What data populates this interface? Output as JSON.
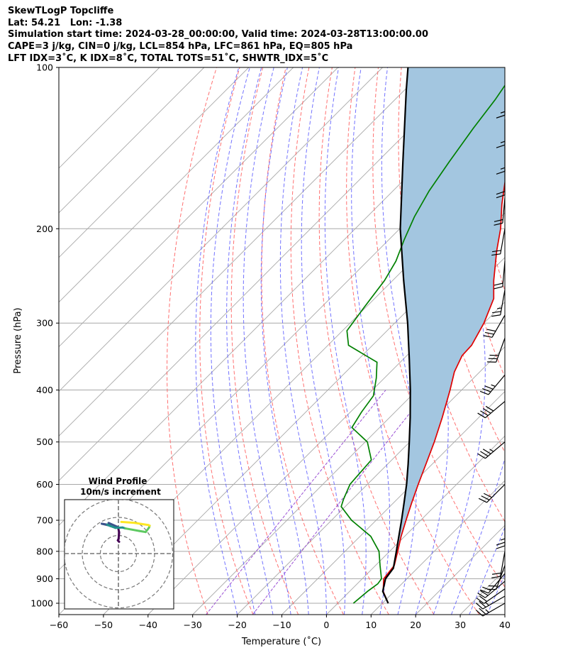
{
  "title": {
    "line1": "SkewTLogP Topcliffe",
    "line2": "Lat: 54.21   Lon: -1.38",
    "line3": "Simulation start time: 2024-03-28_00:00:00, Valid time: 2024-03-28T13:00:00.00",
    "line4": "CAPE=3 j/kg, CIN=0 j/kg, LCL=854 hPa, LFC=861 hPa, EQ=805 hPa",
    "line5": "LFT IDX=3˚C, K IDX=8˚C, TOTAL TOTS=51˚C, SHWTR_IDX=5˚C"
  },
  "colors": {
    "temperature": "#e00000",
    "dewpoint": "#008000",
    "parcel": "#000000",
    "cape_fill": "#a3c6e0",
    "dry_adiabat": "#ff6060",
    "moist_adiabat": "#5a5aff",
    "mixing_ratio": "#9a4fd4",
    "isotherm": "#a8a8a8"
  },
  "chart_data": {
    "type": "line",
    "xlabel": "Temperature (˚C)",
    "ylabel": "Pressure (hPa)",
    "xlim": [
      -60,
      40
    ],
    "ylim": [
      1050,
      100
    ],
    "y_scale": "log",
    "grid": true,
    "x_ticks": [
      "−60",
      "−50",
      "−40",
      "−30",
      "−20",
      "−10",
      "0",
      "10",
      "20",
      "30",
      "40"
    ],
    "y_ticks": [
      "100",
      "200",
      "300",
      "400",
      "500",
      "600",
      "700",
      "800",
      "900",
      "1000"
    ],
    "series": [
      {
        "color": "#e00000",
        "points": [
          [
            1000,
            11.3
          ],
          [
            950,
            7.5
          ],
          [
            900,
            4.8
          ],
          [
            850,
            4.2
          ],
          [
            800,
            1.8
          ],
          [
            750,
            -0.8
          ],
          [
            700,
            -3.3
          ],
          [
            650,
            -5.9
          ],
          [
            600,
            -8.6
          ],
          [
            550,
            -11.4
          ],
          [
            500,
            -14.5
          ],
          [
            450,
            -18.2
          ],
          [
            400,
            -22.6
          ],
          [
            370,
            -25.7
          ],
          [
            345,
            -27.6
          ],
          [
            330,
            -27.8
          ],
          [
            300,
            -30.0
          ],
          [
            270,
            -33.3
          ],
          [
            250,
            -37.3
          ],
          [
            220,
            -43.3
          ],
          [
            200,
            -47.4
          ],
          [
            180,
            -52.6
          ],
          [
            165,
            -56.5
          ],
          [
            150,
            -60.6
          ],
          [
            130,
            -66.6
          ],
          [
            115,
            -71.8
          ],
          [
            100,
            -77.0
          ]
        ]
      },
      {
        "color": "#008000",
        "points": [
          [
            1000,
            3.5
          ],
          [
            950,
            4.0
          ],
          [
            920,
            4.6
          ],
          [
            900,
            4.3
          ],
          [
            850,
            1.0
          ],
          [
            800,
            -2.4
          ],
          [
            750,
            -7.6
          ],
          [
            700,
            -15.5
          ],
          [
            660,
            -20.9
          ],
          [
            640,
            -22.0
          ],
          [
            600,
            -23.9
          ],
          [
            540,
            -24.6
          ],
          [
            500,
            -29.5
          ],
          [
            470,
            -36.2
          ],
          [
            440,
            -37.5
          ],
          [
            410,
            -38.5
          ],
          [
            380,
            -41.8
          ],
          [
            355,
            -45.2
          ],
          [
            330,
            -55.4
          ],
          [
            310,
            -59.0
          ],
          [
            280,
            -60.4
          ],
          [
            250,
            -61.8
          ],
          [
            230,
            -63.6
          ],
          [
            210,
            -66.5
          ],
          [
            190,
            -69.4
          ],
          [
            170,
            -71.9
          ],
          [
            150,
            -73.9
          ],
          [
            130,
            -76.0
          ],
          [
            115,
            -77.5
          ],
          [
            100,
            -79.8
          ]
        ]
      },
      {
        "color": "#000000",
        "points": [
          [
            1000,
            11.3
          ],
          [
            950,
            7.4
          ],
          [
            900,
            5.2
          ],
          [
            860,
            4.6
          ],
          [
            800,
            1.5
          ],
          [
            750,
            -1.3
          ],
          [
            700,
            -4.3
          ],
          [
            650,
            -7.6
          ],
          [
            600,
            -11.2
          ],
          [
            550,
            -15.4
          ],
          [
            500,
            -20.1
          ],
          [
            450,
            -25.4
          ],
          [
            400,
            -31.5
          ],
          [
            350,
            -38.7
          ],
          [
            300,
            -47.1
          ],
          [
            250,
            -57.5
          ],
          [
            200,
            -69.9
          ],
          [
            150,
            -84.3
          ],
          [
            110,
            -99.7
          ],
          [
            100,
            -104.3
          ]
        ]
      }
    ]
  },
  "hodograph": {
    "title_line1": "Wind Profile",
    "title_line2": "10m/s increment",
    "ring_increment_ms": 10,
    "rings": 3,
    "trace": [
      {
        "u": 0.4,
        "v": 6.5
      },
      {
        "u": -0.3,
        "v": 7.3
      },
      {
        "u": 0.1,
        "v": 8.1
      },
      {
        "u": 0.4,
        "v": 11.7
      },
      {
        "u": -0.2,
        "v": 14.6
      },
      {
        "u": -5.4,
        "v": 16.9
      },
      {
        "u": -4.7,
        "v": 15.4
      },
      {
        "u": -9.2,
        "v": 16.5
      },
      {
        "u": -6.2,
        "v": 16.0
      },
      {
        "u": -4.4,
        "v": 15.2
      },
      {
        "u": -1.6,
        "v": 14.2
      },
      {
        "u": 2.3,
        "v": 14.4
      },
      {
        "u": 3.9,
        "v": 13.9
      },
      {
        "u": 11.5,
        "v": 12.5
      },
      {
        "u": 15.1,
        "v": 11.9
      },
      {
        "u": 16.9,
        "v": 14.3
      },
      {
        "u": 17.3,
        "v": 15.4
      },
      {
        "u": 16.5,
        "v": 15.8
      },
      {
        "u": 8.6,
        "v": 17.0
      },
      {
        "u": 1.6,
        "v": 17.5
      }
    ]
  },
  "wind_barbs": [
    {
      "pressure": 1000,
      "speed_kt": 25,
      "dir_deg": 240
    },
    {
      "pressure": 970,
      "speed_kt": 25,
      "dir_deg": 240
    },
    {
      "pressure": 940,
      "speed_kt": 20,
      "dir_deg": 235
    },
    {
      "pressure": 910,
      "speed_kt": 20,
      "dir_deg": 230
    },
    {
      "pressure": 880,
      "speed_kt": 20,
      "dir_deg": 220
    },
    {
      "pressure": 850,
      "speed_kt": 20,
      "dir_deg": 200
    },
    {
      "pressure": 800,
      "speed_kt": 20,
      "dir_deg": 190
    },
    {
      "pressure": 700,
      "speed_kt": 25,
      "dir_deg": 180
    },
    {
      "pressure": 600,
      "speed_kt": 30,
      "dir_deg": 225
    },
    {
      "pressure": 500,
      "speed_kt": 35,
      "dir_deg": 230
    },
    {
      "pressure": 420,
      "speed_kt": 40,
      "dir_deg": 230
    },
    {
      "pressure": 375,
      "speed_kt": 35,
      "dir_deg": 220
    },
    {
      "pressure": 320,
      "speed_kt": 30,
      "dir_deg": 200
    },
    {
      "pressure": 290,
      "speed_kt": 30,
      "dir_deg": 210
    },
    {
      "pressure": 260,
      "speed_kt": 25,
      "dir_deg": 190
    },
    {
      "pressure": 230,
      "speed_kt": 20,
      "dir_deg": 185
    },
    {
      "pressure": 200,
      "speed_kt": 20,
      "dir_deg": 190
    },
    {
      "pressure": 175,
      "speed_kt": 20,
      "dir_deg": 185
    },
    {
      "pressure": 155,
      "speed_kt": 20,
      "dir_deg": 180
    },
    {
      "pressure": 140,
      "speed_kt": 15,
      "dir_deg": 180
    },
    {
      "pressure": 125,
      "speed_kt": 15,
      "dir_deg": 180
    },
    {
      "pressure": 110,
      "speed_kt": 15,
      "dir_deg": 180
    }
  ]
}
